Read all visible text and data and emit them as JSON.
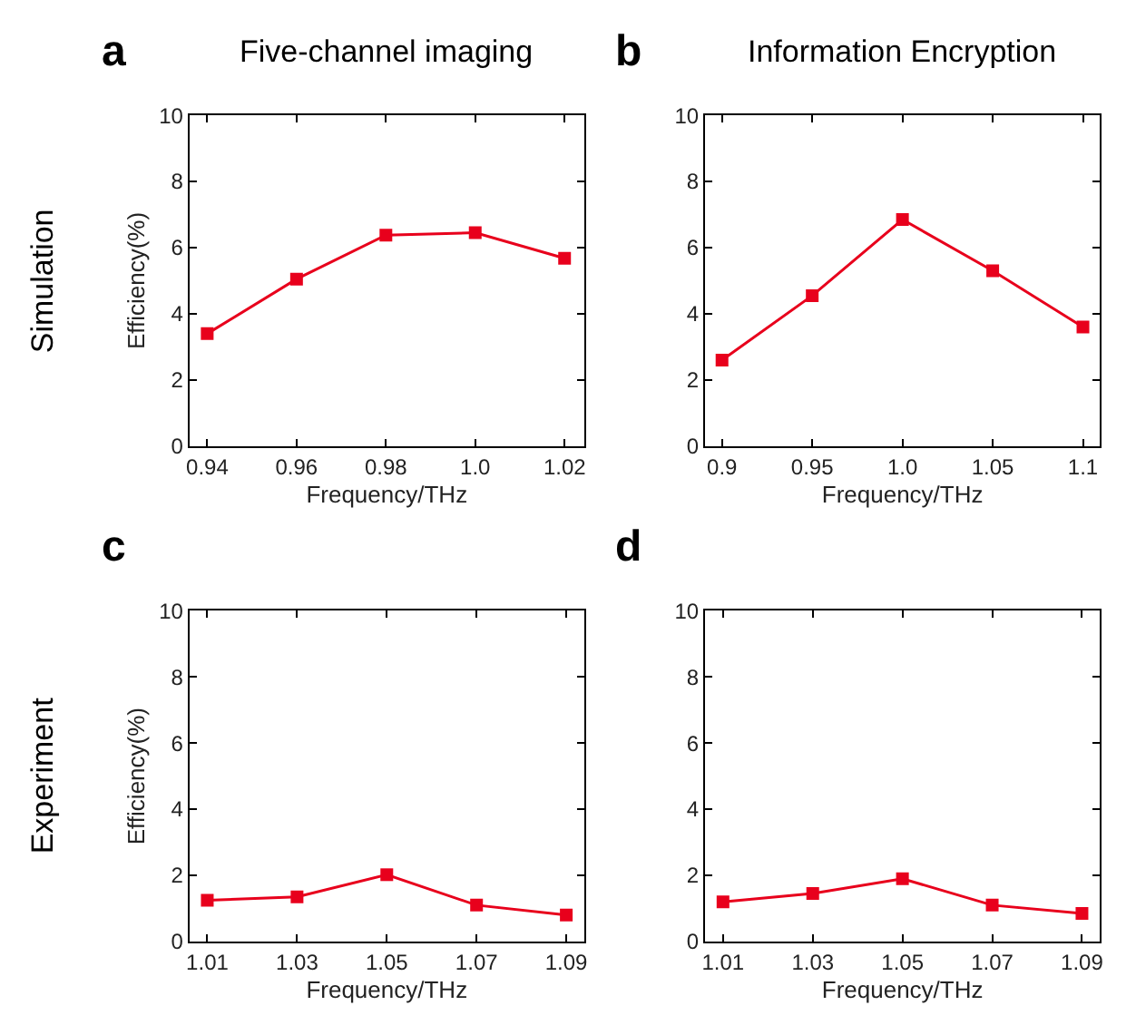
{
  "chart_data": [
    {
      "type": "line",
      "title": "Five-channel imaging",
      "xlabel": "Frequency/THz",
      "ylabel": "Efficiency(%)",
      "annotations": [
        "a",
        "Simulation"
      ],
      "x": [
        0.94,
        0.96,
        0.98,
        1.0,
        1.02
      ],
      "series": [
        {
          "color": "#e8001c",
          "values": [
            3.4,
            5.05,
            6.38,
            6.45,
            5.68
          ]
        }
      ],
      "xlim": [
        0.936,
        1.0244
      ],
      "xticks": [
        0.94,
        0.96,
        0.98,
        {
          "value": 1.0,
          "label": "1.0"
        },
        1.02
      ],
      "ylim": [
        0,
        10
      ],
      "yticks": [
        0,
        2,
        4,
        6,
        8,
        10
      ],
      "marker": "square",
      "line_style": "solid"
    },
    {
      "type": "line",
      "title": "Information Encryption",
      "xlabel": "Frequency/THz",
      "annotations": [
        "b"
      ],
      "x": [
        0.9,
        0.95,
        1.0,
        1.05,
        1.1
      ],
      "series": [
        {
          "color": "#e8001c",
          "values": [
            2.6,
            4.55,
            6.85,
            5.3,
            3.6
          ]
        }
      ],
      "xlim": [
        0.8906,
        1.1094
      ],
      "xticks": [
        0.9,
        0.95,
        {
          "value": 1.0,
          "label": "1.0"
        },
        1.05,
        1.1
      ],
      "ylim": [
        0,
        10
      ],
      "yticks": [
        0,
        2,
        4,
        6,
        8,
        10
      ],
      "marker": "square",
      "line_style": "solid"
    },
    {
      "type": "line",
      "xlabel": "Frequency/THz",
      "ylabel": "Efficiency(%)",
      "annotations": [
        "c",
        "Experiment"
      ],
      "x": [
        1.01,
        1.03,
        1.05,
        1.07,
        1.09
      ],
      "series": [
        {
          "color": "#e8001c",
          "values": [
            1.25,
            1.35,
            2.02,
            1.1,
            0.8
          ]
        }
      ],
      "xlim": [
        1.006,
        1.094
      ],
      "xticks": [
        1.01,
        1.03,
        1.05,
        1.07,
        1.09
      ],
      "ylim": [
        0,
        10
      ],
      "yticks": [
        0,
        2,
        4,
        6,
        8,
        10
      ],
      "marker": "square",
      "line_style": "solid"
    },
    {
      "type": "line",
      "xlabel": "Frequency/THz",
      "annotations": [
        "d"
      ],
      "x": [
        1.01,
        1.03,
        1.05,
        1.07,
        1.09
      ],
      "series": [
        {
          "color": "#e8001c",
          "values": [
            1.2,
            1.45,
            1.9,
            1.1,
            0.85
          ]
        }
      ],
      "xlim": [
        1.006,
        1.094
      ],
      "xticks": [
        1.01,
        1.03,
        1.05,
        1.07,
        1.09
      ],
      "ylim": [
        0,
        10
      ],
      "yticks": [
        0,
        2,
        4,
        6,
        8,
        10
      ],
      "marker": "square",
      "line_style": "solid"
    }
  ]
}
